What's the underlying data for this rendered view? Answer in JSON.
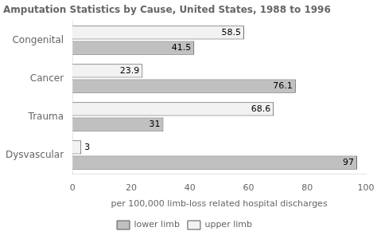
{
  "chart_data": {
    "type": "bar",
    "orientation": "horizontal",
    "title": "Amputation Statistics by Cause, United States, 1988 to 1996",
    "categories": [
      "Congenital",
      "Cancer",
      "Trauma",
      "Dysvascular"
    ],
    "series": [
      {
        "name": "upper limb",
        "color": "#f2f2f2",
        "values": [
          58.5,
          23.9,
          68.6,
          3
        ]
      },
      {
        "name": "lower limb",
        "color": "#c0c0c0",
        "values": [
          41.5,
          76.1,
          31,
          97
        ]
      }
    ],
    "xlabel": "per 100,000 limb-loss related hospital discharges",
    "xlim": [
      0,
      100
    ],
    "xticks": [
      0,
      20,
      40,
      60,
      80,
      100
    ],
    "grid": false,
    "legend": "bottom",
    "data_labels": true
  }
}
